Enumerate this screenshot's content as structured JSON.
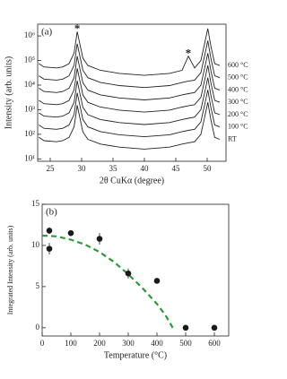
{
  "chart_data": [
    {
      "type": "line",
      "panel_label": "(a)",
      "xlabel": "2θ CuKα (degree)",
      "ylabel": "Intensity (arb. units)",
      "log_y": true,
      "xlim": [
        23,
        53
      ],
      "ylim": [
        8,
        3000000
      ],
      "xticks": [
        25,
        30,
        35,
        40,
        45,
        50
      ],
      "yticks": [
        {
          "value": 10,
          "label": "10¹"
        },
        {
          "value": 100,
          "label": "10²"
        },
        {
          "value": 1000,
          "label": "10³"
        },
        {
          "value": 10000,
          "label": "10⁴"
        },
        {
          "value": 100000,
          "label": "10⁵"
        },
        {
          "value": 1000000,
          "label": "10⁶"
        }
      ],
      "x": [
        23.2,
        24,
        26,
        27,
        28,
        28.8,
        29.3,
        29.7,
        30.2,
        31,
        33,
        36,
        40,
        44,
        46,
        47,
        48,
        49,
        49.6,
        50.1,
        50.6,
        51.2,
        52
      ],
      "series": [
        {
          "name": "600 °C",
          "color": "#222222",
          "values": [
            75000,
            55000,
            50000,
            55000,
            75000,
            200000,
            1500000,
            500000,
            125000,
            62500,
            40000,
            30000,
            25000,
            30000,
            40000,
            150000,
            50000,
            100000,
            500000,
            2000000,
            375000,
            75000,
            62500
          ]
        },
        {
          "name": "500 °C",
          "color": "#222222",
          "values": [
            24000,
            17600,
            16000,
            17600,
            24000,
            64000,
            480000,
            160000,
            40000,
            20000,
            12800,
            9600,
            8000,
            9600,
            12800,
            14400,
            16000,
            32000,
            160000,
            640000,
            120000,
            24000,
            20000
          ]
        },
        {
          "name": "400 °C",
          "color": "#222222",
          "values": [
            7500,
            5500,
            5000,
            5500,
            7500,
            20000,
            150000,
            50000,
            12500,
            6250,
            4000,
            3000,
            2500,
            3000,
            4000,
            4500,
            5000,
            10000,
            50000,
            200000,
            37500,
            7500,
            6250
          ]
        },
        {
          "name": "300 °C",
          "color": "#222222",
          "values": [
            2400,
            1760,
            1600,
            1760,
            2400,
            6400,
            48000,
            16000,
            4000,
            2000,
            1280,
            960,
            800,
            960,
            1280,
            1440,
            1600,
            3200,
            16000,
            64000,
            12000,
            2400,
            2000
          ]
        },
        {
          "name": "200 °C",
          "color": "#222222",
          "values": [
            750,
            550,
            500,
            550,
            750,
            2000,
            15000,
            5000,
            1250,
            625,
            400,
            300,
            250,
            300,
            400,
            450,
            500,
            1000,
            5000,
            20000,
            3750,
            750,
            625
          ]
        },
        {
          "name": "100 °C",
          "color": "#222222",
          "values": [
            240,
            176,
            160,
            176,
            240,
            640,
            4800,
            1600,
            400,
            200,
            128,
            96,
            80,
            96,
            128,
            144,
            160,
            320,
            1600,
            6400,
            1200,
            240,
            200
          ]
        },
        {
          "name": "RT",
          "color": "#222222",
          "values": [
            75,
            55,
            50,
            55,
            75,
            200,
            1500,
            500,
            125,
            62.5,
            40,
            30,
            25,
            30,
            40,
            45,
            50,
            100,
            500,
            2000,
            375,
            75,
            62.5
          ]
        }
      ],
      "annotations": [
        {
          "text": "*",
          "x": 29.3,
          "y": 1500000
        },
        {
          "text": "*",
          "x": 47,
          "y": 150000
        }
      ]
    },
    {
      "type": "scatter",
      "panel_label": "(b)",
      "xlabel": "Temperature (°C)",
      "ylabel": "Integrated Intensity (arb. units)",
      "log_y": false,
      "xlim": [
        0,
        650
      ],
      "ylim": [
        -1,
        15
      ],
      "xticks": [
        0,
        100,
        200,
        300,
        400,
        500,
        600
      ],
      "yticks": [
        0,
        5,
        10,
        15
      ],
      "series": [
        {
          "color": "#1a1a1a",
          "x": [
            25,
            25,
            100,
            200,
            300,
            400,
            500,
            600
          ],
          "values": [
            11.8,
            9.6,
            11.5,
            10.8,
            6.6,
            5.7,
            0,
            0
          ],
          "errors": [
            0.4,
            0.7,
            0.3,
            0.7,
            0.6,
            0.3,
            0.2,
            0.2
          ]
        }
      ],
      "fit": {
        "color": "#2e9a3a",
        "x": [
          0,
          50,
          100,
          150,
          200,
          250,
          300,
          350,
          400,
          430,
          455
        ],
        "y": [
          11.2,
          11.1,
          10.7,
          10.1,
          9.2,
          8.0,
          6.5,
          4.8,
          2.9,
          1.5,
          0
        ]
      }
    }
  ]
}
